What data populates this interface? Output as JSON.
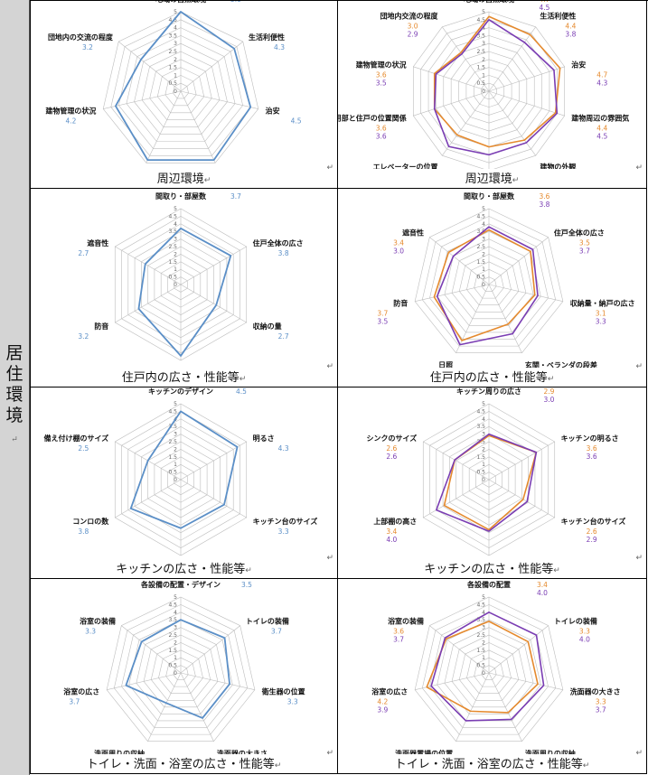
{
  "sidebar": {
    "label": "居住環境",
    "mark": "↵"
  },
  "colors": {
    "single": "#5b8fc7",
    "seriesA": "#e58a2e",
    "seriesB": "#7a3db3"
  },
  "return_mark": "↵",
  "chart_data": [
    {
      "type": "radar",
      "caption": "周辺環境",
      "axes": [
        "地域の自然環境",
        "生活利便性",
        "治安",
        "建物周辺の雰囲気",
        "建物外観",
        "建物管理の状況",
        "団地内の交流の程度"
      ],
      "ylim": [
        0,
        5
      ],
      "ticks": [
        "0",
        "0.5",
        "1",
        "1.5",
        "2",
        "2.5",
        "3",
        "3.5",
        "4",
        "4.5",
        "5"
      ],
      "series": [
        {
          "values": [
            5.0,
            4.3,
            4.5,
            4.8,
            4.8,
            4.2,
            3.2
          ],
          "labels": [
            "5.0",
            "4.3",
            "4.5",
            "4.8",
            "4.8",
            "4.2",
            "3.2"
          ]
        }
      ]
    },
    {
      "type": "radar",
      "caption": "周辺環境",
      "axes": [
        "地域の自然環境",
        "生活利便性",
        "治安",
        "建物周辺の雰囲気",
        "建物の外観",
        "階段の位置",
        "エレベーターの位置",
        "共用部と住戸の位置関係",
        "建物管理の状況",
        "団地内交流の程度"
      ],
      "ylim": [
        0,
        5
      ],
      "ticks": [
        "0",
        "0.5",
        "1",
        "1.5",
        "2",
        "2.5",
        "3",
        "3.5",
        "4",
        "4.5",
        "5"
      ],
      "series": [
        {
          "values": [
            4.7,
            4.4,
            4.7,
            4.4,
            3.8,
            3.5,
            3.4,
            3.6,
            3.6,
            3.0
          ],
          "labels": [
            "4.7",
            "4.4",
            "4.7",
            "4.4",
            "3.8",
            "3.5",
            "3.4",
            "3.6",
            "3.6",
            "3.0"
          ]
        },
        {
          "values": [
            4.5,
            3.8,
            4.3,
            4.5,
            4.0,
            4.0,
            4.3,
            3.6,
            3.5,
            2.9
          ],
          "labels": [
            "4.5",
            "3.8",
            "4.3",
            "4.5",
            "4.0",
            "4.0",
            "4.3",
            "3.6",
            "3.5",
            "2.9"
          ]
        }
      ]
    },
    {
      "type": "radar",
      "caption": "住戸内の広さ・性能等",
      "axes": [
        "間取り・部屋数",
        "住戸全体の広さ",
        "収納の量",
        "日照",
        "防音",
        "遮音性"
      ],
      "ylim": [
        0,
        5
      ],
      "ticks": [
        "0",
        "0.5",
        "1",
        "1.5",
        "2",
        "2.5",
        "3",
        "3.5",
        "4",
        "4.5",
        "5"
      ],
      "series": [
        {
          "values": [
            3.7,
            3.8,
            2.7,
            4.7,
            3.2,
            2.7
          ],
          "labels": [
            "3.7",
            "3.8",
            "2.7",
            "4.7",
            "3.2",
            "2.7"
          ]
        }
      ]
    },
    {
      "type": "radar",
      "caption": "住戸内の広さ・性能等",
      "axes": [
        "間取り・部屋数",
        "住戸全体の広さ",
        "収納量・納戸の広さ",
        "玄関・ベランダの段差",
        "日照",
        "防音",
        "遮音性"
      ],
      "ylim": [
        0,
        5
      ],
      "ticks": [
        "0",
        "0.5",
        "1",
        "1.5",
        "2",
        "2.5",
        "3",
        "3.5",
        "4",
        "4.5",
        "5"
      ],
      "series": [
        {
          "values": [
            3.6,
            3.5,
            3.1,
            2.9,
            4.1,
            3.7,
            3.4
          ],
          "labels": [
            "3.6",
            "3.5",
            "3.1",
            "2.9",
            "4.1",
            "3.7",
            "3.4"
          ]
        },
        {
          "values": [
            3.8,
            3.7,
            3.3,
            3.6,
            4.4,
            3.5,
            3.0
          ],
          "labels": [
            "3.8",
            "3.7",
            "3.3",
            "3.6",
            "4.4",
            "3.5",
            "3.0"
          ]
        }
      ]
    },
    {
      "type": "radar",
      "caption": "キッチンの広さ・性能等",
      "axes": [
        "キッチンのデザイン",
        "明るさ",
        "キッチン台のサイズ",
        "シンクのサイズ",
        "コンロの数",
        "備え付け棚のサイズ"
      ],
      "ylim": [
        0,
        5
      ],
      "ticks": [
        "0",
        "0.5",
        "1",
        "1.5",
        "2",
        "2.5",
        "3",
        "3.5",
        "4",
        "4.5",
        "5"
      ],
      "series": [
        {
          "values": [
            4.5,
            4.3,
            3.3,
            3.2,
            3.8,
            2.5
          ],
          "labels": [
            "4.5",
            "4.3",
            "3.3",
            "3.2",
            "3.8",
            "2.5"
          ]
        }
      ]
    },
    {
      "type": "radar",
      "caption": "キッチンの広さ・性能等",
      "axes": [
        "キッチン周りの広さ",
        "キッチンの明るさ",
        "キッチン台のサイズ",
        "キッチン台の高さ",
        "上部棚の高さ",
        "シンクのサイズ"
      ],
      "ylim": [
        0,
        5
      ],
      "ticks": [
        "0",
        "0.5",
        "1",
        "1.5",
        "2",
        "2.5",
        "3",
        "3.5",
        "4",
        "4.5",
        "5"
      ],
      "series": [
        {
          "values": [
            2.9,
            3.6,
            2.6,
            3.3,
            3.4,
            2.6
          ],
          "labels": [
            "2.9",
            "3.6",
            "2.6",
            "3.3",
            "3.4",
            "2.6"
          ]
        },
        {
          "values": [
            3.0,
            3.6,
            2.9,
            3.4,
            4.0,
            2.6
          ],
          "labels": [
            "3.0",
            "3.6",
            "2.9",
            "3.4",
            "4.0",
            "2.6"
          ]
        }
      ]
    },
    {
      "type": "radar",
      "caption": "トイレ・洗面・浴室の広さ・性能等",
      "axes": [
        "各設備の配置・デザイン",
        "トイレの装備",
        "衛生器の位置",
        "洗面器の大きさ",
        "洗面周りの収納",
        "浴室の広さ",
        "浴室の装備"
      ],
      "ylim": [
        0,
        5
      ],
      "ticks": [
        "0",
        "0.5",
        "1",
        "1.5",
        "2",
        "2.5",
        "3",
        "3.5",
        "4",
        "4.5",
        "5"
      ],
      "series": [
        {
          "values": [
            3.5,
            3.7,
            3.3,
            3.3,
            2.2,
            3.7,
            3.3
          ],
          "labels": [
            "3.5",
            "3.7",
            "3.3",
            "3.3",
            "2.2",
            "3.7",
            "3.3"
          ]
        }
      ]
    },
    {
      "type": "radar",
      "caption": "トイレ・洗面・浴室の広さ・性能等",
      "axes": [
        "各設備の配置",
        "トイレの装備",
        "洗面器の大きさ",
        "洗面周りの収納",
        "洗面器置場の位置",
        "浴室の広さ",
        "浴室の装備"
      ],
      "ylim": [
        0,
        5
      ],
      "ticks": [
        "0",
        "0.5",
        "1",
        "1.5",
        "2",
        "2.5",
        "3",
        "3.5",
        "4",
        "4.5",
        "5"
      ],
      "series": [
        {
          "values": [
            3.4,
            3.3,
            3.3,
            2.9,
            2.8,
            4.2,
            3.6
          ],
          "labels": [
            "3.4",
            "3.3",
            "3.3",
            "2.9",
            "2.8",
            "4.2",
            "3.6"
          ]
        },
        {
          "values": [
            4.0,
            4.0,
            3.7,
            3.4,
            3.5,
            3.9,
            3.7
          ],
          "labels": [
            "4.0",
            "4.0",
            "3.7",
            "3.4",
            "3.5",
            "3.9",
            "3.7"
          ]
        }
      ]
    }
  ]
}
